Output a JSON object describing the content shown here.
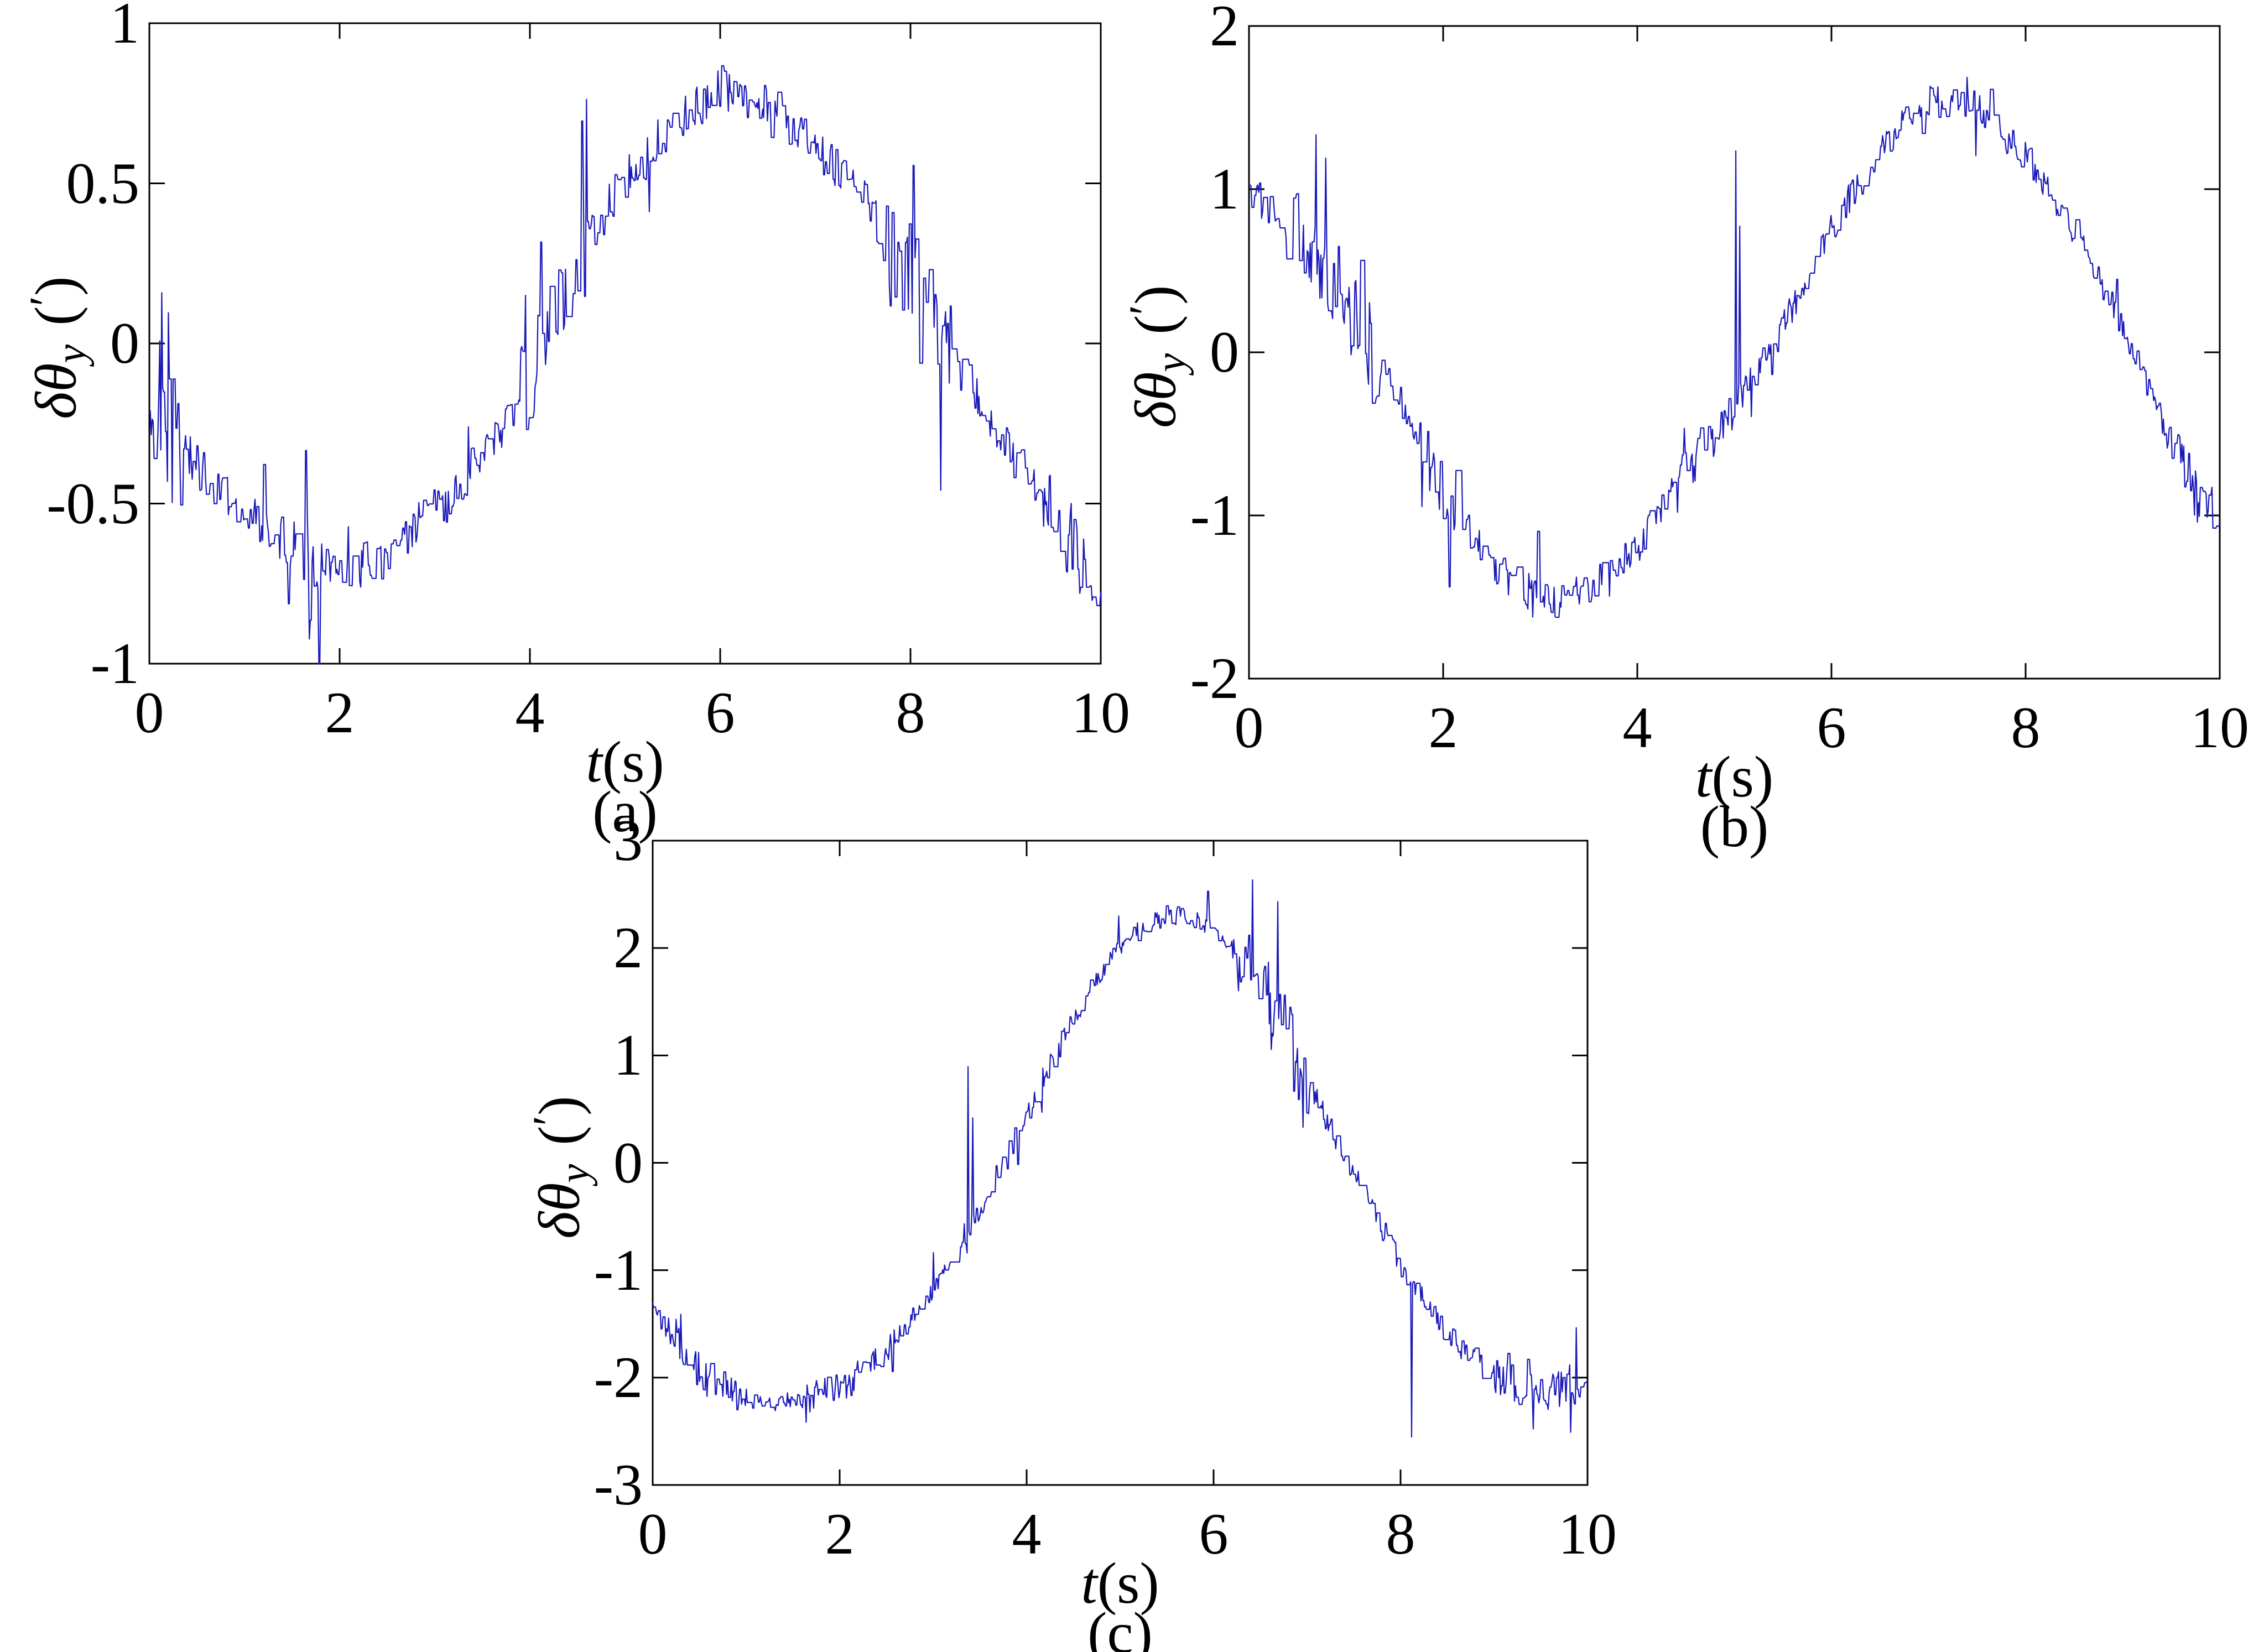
{
  "figure": {
    "background": "#ffffff",
    "axis_color": "#000000",
    "num_panels": 3
  },
  "chart_data": [
    {
      "type": "line",
      "panel_label": "(a)",
      "xlabel": {
        "var": "t",
        "unit": "(s)"
      },
      "ylabel": {
        "main": "δθ",
        "sub": "y",
        "open": "(",
        "prime": "′",
        "close": ")"
      },
      "xlim": [
        0,
        10
      ],
      "ylim": [
        -1,
        1
      ],
      "xtick_values": [
        0,
        2,
        4,
        6,
        8,
        10
      ],
      "xtick_labels": [
        "0",
        "2",
        "4",
        "6",
        "8",
        "10"
      ],
      "ytick_values": [
        -1,
        -0.5,
        0,
        0.5,
        1
      ],
      "ytick_labels": [
        "-1",
        "-0.5",
        "0",
        "0.5",
        "1"
      ],
      "grid": false,
      "legend": false,
      "line": {
        "color": "#1a1ab9",
        "width": 2.2
      },
      "series": {
        "samples": 1000,
        "seed": 11,
        "trend": [
          [
            0,
            -0.22
          ],
          [
            0.5,
            -0.38
          ],
          [
            1,
            -0.52
          ],
          [
            1.5,
            -0.63
          ],
          [
            2,
            -0.72
          ],
          [
            2.5,
            -0.66
          ],
          [
            3,
            -0.52
          ],
          [
            3.5,
            -0.36
          ],
          [
            4,
            -0.1
          ],
          [
            4.5,
            0.26
          ],
          [
            5,
            0.52
          ],
          [
            5.5,
            0.68
          ],
          [
            6,
            0.8
          ],
          [
            6.5,
            0.75
          ],
          [
            7,
            0.62
          ],
          [
            7.5,
            0.45
          ],
          [
            8,
            0.22
          ],
          [
            8.5,
            -0.06
          ],
          [
            9,
            -0.32
          ],
          [
            9.5,
            -0.55
          ],
          [
            10,
            -0.78
          ]
        ],
        "noise": {
          "base": 0.07,
          "hold_prob": 0.5,
          "spike_prob": 0.02,
          "bursts": [
            [
              0.05,
              0.35,
              2.6
            ],
            [
              1.5,
              1.85,
              2.0
            ],
            [
              3.7,
              4.6,
              2.2
            ],
            [
              7.7,
              8.6,
              2.2
            ],
            [
              9.45,
              10,
              1.8
            ]
          ],
          "spikes": [
            [
              0.13,
              0.42
            ],
            [
              0.2,
              0.38
            ],
            [
              0.24,
              -0.2
            ],
            [
              1.68,
              -0.26
            ],
            [
              8.32,
              -0.5
            ]
          ]
        }
      }
    },
    {
      "type": "line",
      "panel_label": "(b)",
      "xlabel": {
        "var": "t",
        "unit": "(s)"
      },
      "ylabel": {
        "main": "δθ",
        "sub": "y",
        "open": "(",
        "prime": "′",
        "close": ")"
      },
      "xlim": [
        0,
        10
      ],
      "ylim": [
        -2,
        2
      ],
      "xtick_values": [
        0,
        2,
        4,
        6,
        8,
        10
      ],
      "xtick_labels": [
        "0",
        "2",
        "4",
        "6",
        "8",
        "10"
      ],
      "ytick_values": [
        -2,
        -1,
        0,
        1,
        2
      ],
      "ytick_labels": [
        "-2",
        "-1",
        "0",
        "1",
        "2"
      ],
      "grid": false,
      "legend": false,
      "line": {
        "color": "#1a1ab9",
        "width": 2.2
      },
      "series": {
        "samples": 1000,
        "seed": 47,
        "trend": [
          [
            0,
            1.0
          ],
          [
            0.5,
            0.72
          ],
          [
            1,
            0.33
          ],
          [
            1.5,
            -0.25
          ],
          [
            2,
            -0.85
          ],
          [
            2.5,
            -1.3
          ],
          [
            3,
            -1.52
          ],
          [
            3.5,
            -1.45
          ],
          [
            4,
            -1.18
          ],
          [
            4.5,
            -0.75
          ],
          [
            5,
            -0.33
          ],
          [
            5.5,
            0.15
          ],
          [
            6,
            0.75
          ],
          [
            6.5,
            1.25
          ],
          [
            7,
            1.55
          ],
          [
            7.5,
            1.5
          ],
          [
            8,
            1.2
          ],
          [
            8.5,
            0.75
          ],
          [
            9,
            0.15
          ],
          [
            9.5,
            -0.55
          ],
          [
            10,
            -1.15
          ]
        ],
        "noise": {
          "base": 0.1,
          "hold_prob": 0.5,
          "spike_prob": 0.02,
          "bursts": [
            [
              0.45,
              1.35,
              2.6
            ],
            [
              1.75,
              2.15,
              2.0
            ],
            [
              2.6,
              3.3,
              1.4
            ],
            [
              4.35,
              4.8,
              1.6
            ],
            [
              9.55,
              10,
              1.8
            ]
          ],
          "spikes": [
            [
              5.02,
              1.55
            ],
            [
              5.06,
              1.05
            ]
          ]
        }
      }
    },
    {
      "type": "line",
      "panel_label": "(c)",
      "xlabel": {
        "var": "t",
        "unit": "(s)"
      },
      "ylabel": {
        "main": "δθ",
        "sub": "y",
        "open": "(",
        "prime": "′",
        "close": ")"
      },
      "xlim": [
        0,
        10
      ],
      "ylim": [
        -3,
        3
      ],
      "xtick_values": [
        0,
        2,
        4,
        6,
        8,
        10
      ],
      "xtick_labels": [
        "0",
        "2",
        "4",
        "6",
        "8",
        "10"
      ],
      "ytick_values": [
        -3,
        -2,
        -1,
        0,
        1,
        2,
        3
      ],
      "ytick_labels": [
        "-3",
        "-2",
        "-1",
        "0",
        "1",
        "2",
        "3"
      ],
      "grid": false,
      "legend": false,
      "line": {
        "color": "#1a1ab9",
        "width": 2.2
      },
      "series": {
        "samples": 1000,
        "seed": 83,
        "trend": [
          [
            0,
            -1.35
          ],
          [
            0.5,
            -1.95
          ],
          [
            1,
            -2.2
          ],
          [
            1.5,
            -2.25
          ],
          [
            2,
            -2.1
          ],
          [
            2.5,
            -1.75
          ],
          [
            3,
            -1.15
          ],
          [
            3.5,
            -0.42
          ],
          [
            4,
            0.45
          ],
          [
            4.5,
            1.35
          ],
          [
            5,
            2.05
          ],
          [
            5.5,
            2.3
          ],
          [
            6,
            2.2
          ],
          [
            6.5,
            1.7
          ],
          [
            7,
            0.75
          ],
          [
            7.5,
            -0.1
          ],
          [
            8,
            -0.95
          ],
          [
            8.5,
            -1.6
          ],
          [
            9,
            -2.0
          ],
          [
            9.5,
            -2.15
          ],
          [
            10,
            -2.0
          ]
        ],
        "noise": {
          "base": 0.11,
          "hold_prob": 0.5,
          "spike_prob": 0.02,
          "bursts": [
            [
              0.25,
              0.95,
              1.8
            ],
            [
              1.6,
              2.2,
              1.4
            ],
            [
              6.2,
              7.05,
              3.5
            ],
            [
              8.9,
              10,
              1.6
            ]
          ],
          "spikes": [
            [
              3.37,
              1.5
            ],
            [
              3.42,
              0.95
            ],
            [
              6.42,
              0.85
            ],
            [
              8.12,
              -1.45
            ],
            [
              9.88,
              0.5
            ]
          ]
        }
      }
    }
  ]
}
